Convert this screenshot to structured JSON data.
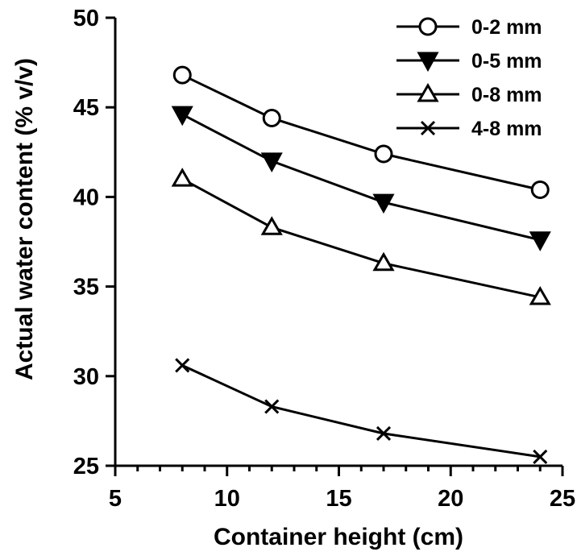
{
  "chart_data": {
    "type": "line",
    "title": "",
    "xlabel": "Container height (cm)",
    "ylabel": "Actual water content (% v/v)",
    "xlim": [
      5,
      25
    ],
    "ylim": [
      25,
      50
    ],
    "x_ticks": [
      5,
      10,
      15,
      20,
      25
    ],
    "y_ticks": [
      25,
      30,
      35,
      40,
      45,
      50
    ],
    "x_minor_step": 1,
    "grid": false,
    "legend_position": "top-right",
    "x": [
      8,
      12,
      17,
      24
    ],
    "series": [
      {
        "name": "0-2 mm",
        "marker": "open-circle",
        "values": [
          46.8,
          44.4,
          42.4,
          40.4
        ]
      },
      {
        "name": "0-5 mm",
        "marker": "filled-triangle-down",
        "values": [
          44.6,
          42.0,
          39.7,
          37.6
        ]
      },
      {
        "name": "0-8 mm",
        "marker": "open-triangle-up",
        "values": [
          41.0,
          38.3,
          36.3,
          34.4
        ]
      },
      {
        "name": "4-8 mm",
        "marker": "cross",
        "values": [
          30.6,
          28.3,
          26.8,
          25.5
        ]
      }
    ],
    "colors": {
      "line": "#000000",
      "background": "#ffffff"
    }
  }
}
